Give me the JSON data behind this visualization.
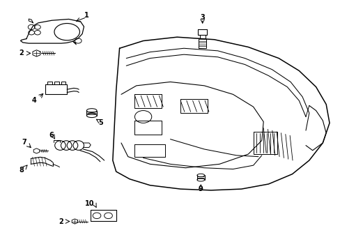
{
  "bg_color": "#ffffff",
  "line_color": "#000000",
  "fig_width": 4.89,
  "fig_height": 3.6,
  "dpi": 100,
  "dash_outer": {
    "x": [
      0.35,
      0.42,
      0.52,
      0.63,
      0.73,
      0.82,
      0.88,
      0.93,
      0.96,
      0.97,
      0.95,
      0.91,
      0.86,
      0.79,
      0.71,
      0.62,
      0.53,
      0.44,
      0.38,
      0.34,
      0.33,
      0.34,
      0.35
    ],
    "y": [
      0.81,
      0.84,
      0.855,
      0.845,
      0.815,
      0.77,
      0.72,
      0.655,
      0.585,
      0.51,
      0.43,
      0.36,
      0.305,
      0.265,
      0.245,
      0.24,
      0.245,
      0.26,
      0.285,
      0.315,
      0.36,
      0.64,
      0.81
    ]
  },
  "dash_inner1": {
    "x": [
      0.37,
      0.44,
      0.54,
      0.64,
      0.72,
      0.8,
      0.855,
      0.89,
      0.91,
      0.9
    ],
    "y": [
      0.77,
      0.795,
      0.81,
      0.8,
      0.77,
      0.725,
      0.675,
      0.615,
      0.55,
      0.48
    ]
  },
  "dash_inner2": {
    "x": [
      0.37,
      0.44,
      0.54,
      0.64,
      0.72,
      0.79,
      0.845,
      0.88,
      0.9
    ],
    "y": [
      0.74,
      0.77,
      0.785,
      0.775,
      0.745,
      0.7,
      0.655,
      0.6,
      0.535
    ]
  },
  "dash_face": {
    "x": [
      0.355,
      0.4,
      0.5,
      0.6,
      0.685,
      0.745,
      0.775,
      0.77,
      0.73,
      0.645,
      0.545,
      0.44,
      0.375,
      0.355
    ],
    "y": [
      0.625,
      0.66,
      0.675,
      0.66,
      0.625,
      0.575,
      0.515,
      0.44,
      0.385,
      0.345,
      0.33,
      0.345,
      0.375,
      0.43
    ]
  },
  "dash_swoop": {
    "x": [
      0.42,
      0.5,
      0.6,
      0.685,
      0.745,
      0.77
    ],
    "y": [
      0.37,
      0.345,
      0.33,
      0.325,
      0.34,
      0.38
    ]
  },
  "part1_outline": {
    "x": [
      0.065,
      0.075,
      0.085,
      0.095,
      0.105,
      0.15,
      0.2,
      0.235,
      0.245,
      0.24,
      0.235,
      0.22,
      0.205,
      0.19,
      0.175,
      0.155,
      0.13,
      0.1,
      0.075,
      0.06,
      0.055,
      0.06,
      0.065
    ],
    "y": [
      0.845,
      0.875,
      0.895,
      0.905,
      0.91,
      0.92,
      0.925,
      0.915,
      0.895,
      0.865,
      0.845,
      0.835,
      0.83,
      0.828,
      0.828,
      0.828,
      0.828,
      0.828,
      0.828,
      0.832,
      0.84,
      0.843,
      0.845
    ]
  }
}
